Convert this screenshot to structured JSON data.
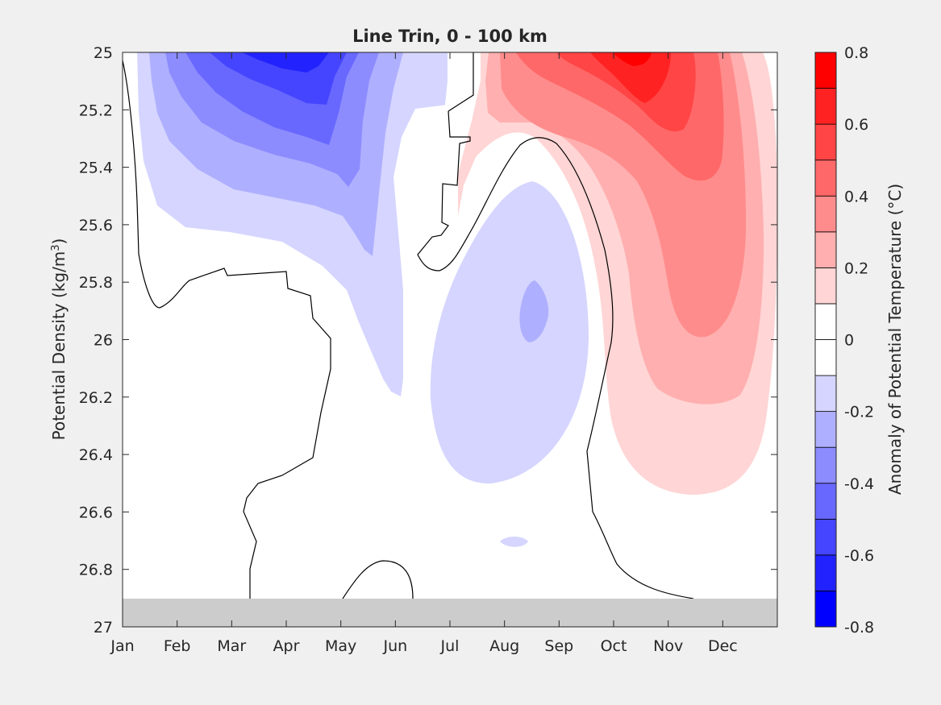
{
  "chart_data": {
    "type": "contour",
    "title": "Line Trin, 0 - 100 km",
    "ylabel_prefix": "Potential Density (kg/m",
    "ylabel_exp": "3",
    "ylabel_suffix": ")",
    "colorbar_label": "Anomaly of Potential Temperature (°C)",
    "x_ticks": [
      "Jan",
      "Feb",
      "Mar",
      "Apr",
      "May",
      "Jun",
      "Jul",
      "Aug",
      "Sep",
      "Oct",
      "Nov",
      "Dec"
    ],
    "y_ticks": [
      "25",
      "25.2",
      "25.4",
      "25.6",
      "25.8",
      "26",
      "26.2",
      "26.4",
      "26.6",
      "26.8",
      "27"
    ],
    "ylim": [
      25,
      27
    ],
    "y_reversed": true,
    "colorbar_ticks": [
      "0.8",
      "0.6",
      "0.4",
      "0.2",
      "0",
      "-0.2",
      "-0.4",
      "-0.6",
      "-0.8"
    ],
    "clim": [
      -0.8,
      0.8
    ],
    "levels": [
      -0.8,
      -0.7,
      -0.6,
      -0.5,
      -0.4,
      -0.3,
      -0.2,
      -0.1,
      0,
      0.1,
      0.2,
      0.3,
      0.4,
      0.5,
      0.6,
      0.7,
      0.8
    ],
    "colors": {
      "-0.75": "#0000ff",
      "-0.65": "#2222ff",
      "-0.55": "#4545ff",
      "-0.45": "#6868ff",
      "-0.35": "#8c8cff",
      "-0.25": "#afafff",
      "-0.15": "#d5d5ff",
      "-0.05": "#ffffff",
      "0.05": "#ffffff",
      "0.15": "#ffd5d5",
      "0.25": "#ffafaf",
      "0.35": "#ff8c8c",
      "0.45": "#ff6868",
      "0.55": "#ff4545",
      "0.65": "#ff2222",
      "0.75": "#ff0000"
    },
    "features": [
      {
        "name": "cold anomaly core",
        "month": 3.4,
        "density": 25.05,
        "value": -0.6
      },
      {
        "name": "cold anomaly mid-depth",
        "month": 7.5,
        "density": 25.9,
        "value": -0.25
      },
      {
        "name": "warm anomaly core",
        "month": 9.6,
        "density": 25.1,
        "value": 0.6
      },
      {
        "name": "warm anomaly deep lobe",
        "month": 10.0,
        "density": 26.2,
        "value": 0.25
      }
    ],
    "masked_region": {
      "density_min": 26.9,
      "density_max": 27,
      "color": "#cccccc"
    },
    "grid": false
  }
}
